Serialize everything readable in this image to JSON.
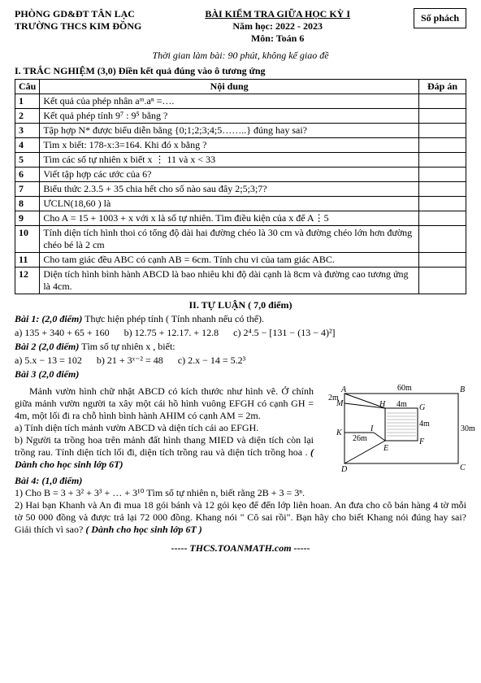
{
  "header": {
    "dept": "PHÒNG GD&ĐT TÂN LẠC",
    "school": "TRƯỜNG THCS KIM ĐỒNG",
    "exam_title": "BÀI KIỂM TRA GIỮA HỌC KỲ I",
    "year": "Năm học: 2022 - 2023",
    "subject": "Môn: Toán 6",
    "box": "Số phách",
    "time": "Thời gian làm bài: 90 phút, không kể giao đề"
  },
  "section1_title": "I.  TRẮC NGHIỆM (3,0) Điền kết quả đúng vào ô tương ứng",
  "table": {
    "head": [
      "Câu",
      "Nội dung",
      "Đáp án"
    ],
    "rows": [
      [
        "1",
        "Kết quả của phép nhân aᵐ.aⁿ =…."
      ],
      [
        "2",
        "Kết quả phép tính 9⁷ : 9⁵ bằng ?"
      ],
      [
        "3",
        "Tập hợp N* được biểu diễn bằng {0;1;2;3;4;5……..} đúng hay sai?"
      ],
      [
        "4",
        "Tìm x biết: 178-x:3=164. Khi đó x bằng ?"
      ],
      [
        "5",
        "Tìm các số tự nhiên x biết x ⋮ 11 và  x < 33"
      ],
      [
        "6",
        "Viết tập hợp các ước của 6?"
      ],
      [
        "7",
        "Biểu thức 2.3.5 + 35 chia hết cho số nào sau đây 2;5;3;7?"
      ],
      [
        "8",
        "ƯCLN(18,60 ) là"
      ],
      [
        "9",
        "Cho A = 15 + 1003 + x với x là số tự nhiên. Tìm điều kiện của x để A⋮5"
      ],
      [
        "10",
        "Tính diện tích hình thoi có tổng độ dài hai đường chéo là 30 cm và đường chéo lớn hơn đường chéo bé là 2 cm"
      ],
      [
        "11",
        "Cho tam giác đều ABC có cạnh AB = 6cm. Tính chu vi của tam giác ABC."
      ],
      [
        "12",
        "Diện tích hình bình hành ABCD là bao nhiêu khi độ dài cạnh là 8cm và đường cao tương ứng là 4cm."
      ]
    ]
  },
  "section2_title": "II. TỰ LUẬN ( 7,0 điểm)",
  "bai1": {
    "title": "Bài 1: (2,0 điểm)",
    "desc": " Thực hiện phép tính ( Tính nhanh nếu có thể).",
    "a": "a) 135 + 340 + 65 + 160",
    "b": "b) 12.75 + 12.17. + 12.8",
    "c": "c) 2⁴.5 − [131 − (13 − 4)²]"
  },
  "bai2": {
    "title": "Bài 2 (2,0 điểm)",
    "desc": " Tìm số tự nhiên x , biết:",
    "a": "a) 5.x − 13 = 102",
    "b": "b) 21 + 3ˣ⁻² = 48",
    "c": "c) 2.x − 14  =  5.2³"
  },
  "bai3": {
    "title": "Bài 3 (2,0 điểm)",
    "p1": "Mảnh vườn hình chữ nhật ABCD có kích thước như hình vẽ. Ở chính giữa mảnh vườn người ta xây một cái hồ hình vuông EFGH có cạnh GH = 4m, một lối đi ra chỗ hình bình hành AHIM có cạnh AM = 2m.",
    "pa": "a) Tính diện tích mảnh vườn ABCD và diện tích cái ao EFGH.",
    "pb": "b) Người ta trồng hoa trên mảnh đất hình thang MIED và diện tích còn lại trồng rau. Tính diện tích lối đi, diện tích trồng rau và diện tích trồng hoa .",
    "note": "( Dành cho học sinh lớp 6T)",
    "fig": {
      "w": 180,
      "h": 110,
      "labels": {
        "A": "A",
        "B": "B",
        "C": "C",
        "D": "D",
        "E": "E",
        "F": "F",
        "G": "G",
        "H": "H",
        "I": "I",
        "M": "M",
        "K": "K"
      },
      "len": {
        "top": "60m",
        "left_upper": "2m",
        "left_lower": "26m",
        "right": "30m",
        "gh": "4m",
        "gf": "4m"
      },
      "colors": {
        "stroke": "#000",
        "hatch": "#000",
        "bg": "#fff"
      }
    }
  },
  "bai4": {
    "title": "Bài 4: (1,0 điểm)",
    "p1_pre": "1) Cho B = 3 + 3² + 3³ + … + 3¹⁰  Tìm số tự nhiên n, biết rằng 2B + 3 = 3ⁿ.",
    "p2": "2) Hai bạn Khanh và An đi mua 18 gói bánh và 12 gói kẹo để đến lớp liên hoan. An đưa cho cô bán hàng 4 tờ mỗi tờ 50 000 đồng và được trả lại 72 000 đồng. Khang nói \" Cô sai rồi\". Bạn hãy cho biết Khang nói đúng hay sai? Giải thích vì sao? ",
    "p2_note": "( Dành cho học sinh lớp 6T )"
  },
  "footer": "----- THCS.TOANMATH.com -----"
}
